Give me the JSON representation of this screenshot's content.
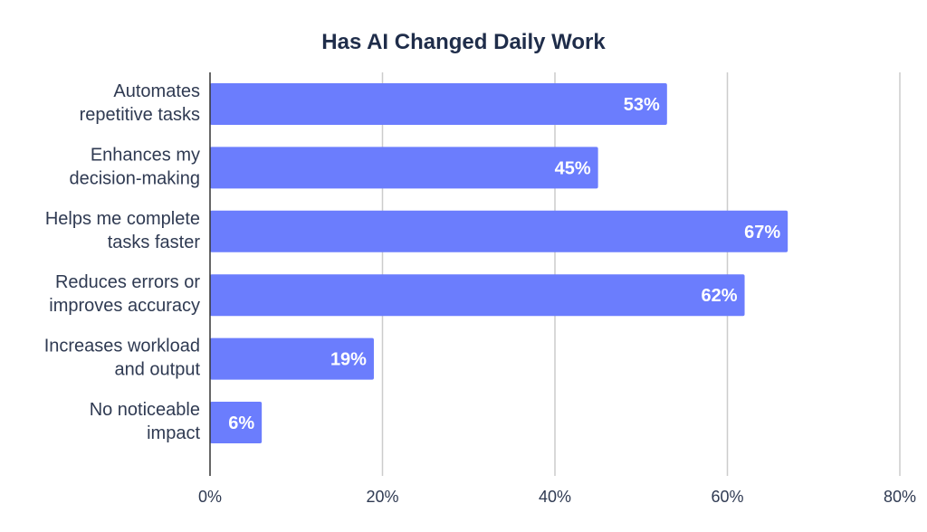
{
  "chart_data": {
    "type": "bar",
    "orientation": "horizontal",
    "title": "Has AI Changed Daily Work",
    "xlabel": "",
    "ylabel": "",
    "categories": [
      [
        "Automates",
        "repetitive tasks"
      ],
      [
        "Enhances my",
        "decision-making"
      ],
      [
        "Helps me complete",
        "tasks faster"
      ],
      [
        "Reduces errors or",
        "improves accuracy"
      ],
      [
        "Increases workload",
        "and output"
      ],
      [
        "No noticeable",
        "impact"
      ]
    ],
    "values": [
      53,
      45,
      67,
      62,
      19,
      6
    ],
    "data_labels": [
      "53%",
      "45%",
      "67%",
      "62%",
      "19%",
      "6%"
    ],
    "xlim": [
      0,
      80
    ],
    "x_ticks": [
      0,
      20,
      40,
      60,
      80
    ],
    "x_tick_labels": [
      "0%",
      "20%",
      "40%",
      "60%",
      "80%"
    ],
    "grid": "vertical",
    "legend": "none"
  },
  "colors": {
    "bar": "#6b7dfd",
    "grid": "#cccccc",
    "axis": "#333333",
    "title_text": "#1f2d4a",
    "label_text": "#2f3a52",
    "data_label_text": "#ffffff",
    "background": "#ffffff"
  }
}
